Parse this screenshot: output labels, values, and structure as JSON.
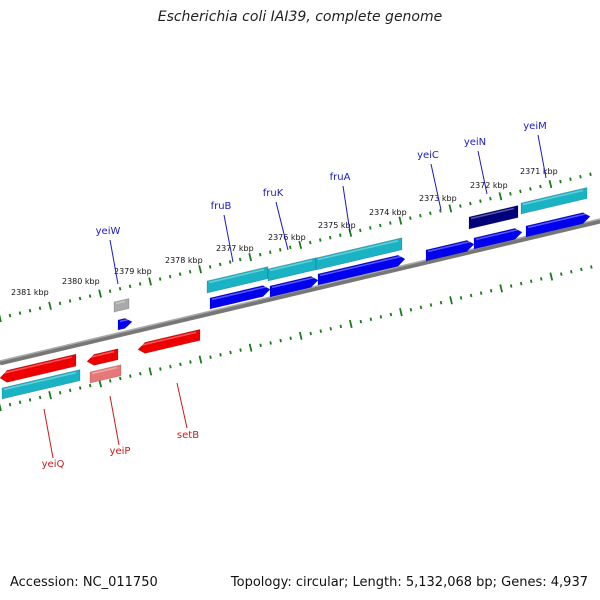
{
  "title": "Escherichia coli IAI39, complete genome",
  "footer": {
    "accession": "Accession: NC_011750",
    "summary": "Topology: circular; Length: 5,132,068 bp; Genes: 4,937"
  },
  "colors": {
    "forward_gene": "#0000ee",
    "reverse_gene": "#ee0000",
    "cds_teal": "#1ab3c4",
    "dark_gene": "#00007a",
    "gray_gene": "#aaaaaa",
    "pink_gene": "#e87878",
    "tick": "#1a7a1a",
    "backbone": "#888888",
    "forward_label": "#1a1acc",
    "reverse_label": "#cc1a1a"
  },
  "kbp_labels": [
    "2381 kbp",
    "2380 kbp",
    "2379 kbp",
    "2378 kbp",
    "2377 kbp",
    "2376 kbp",
    "2375 kbp",
    "2374 kbp",
    "2373 kbp",
    "2372 kbp",
    "2371 kbp"
  ],
  "forward_genes": [
    "yeiW",
    "fruB",
    "fruK",
    "fruA",
    "yeiC",
    "yeiN",
    "yeiM"
  ],
  "reverse_genes": [
    "yeiQ",
    "yeiP",
    "setB"
  ]
}
